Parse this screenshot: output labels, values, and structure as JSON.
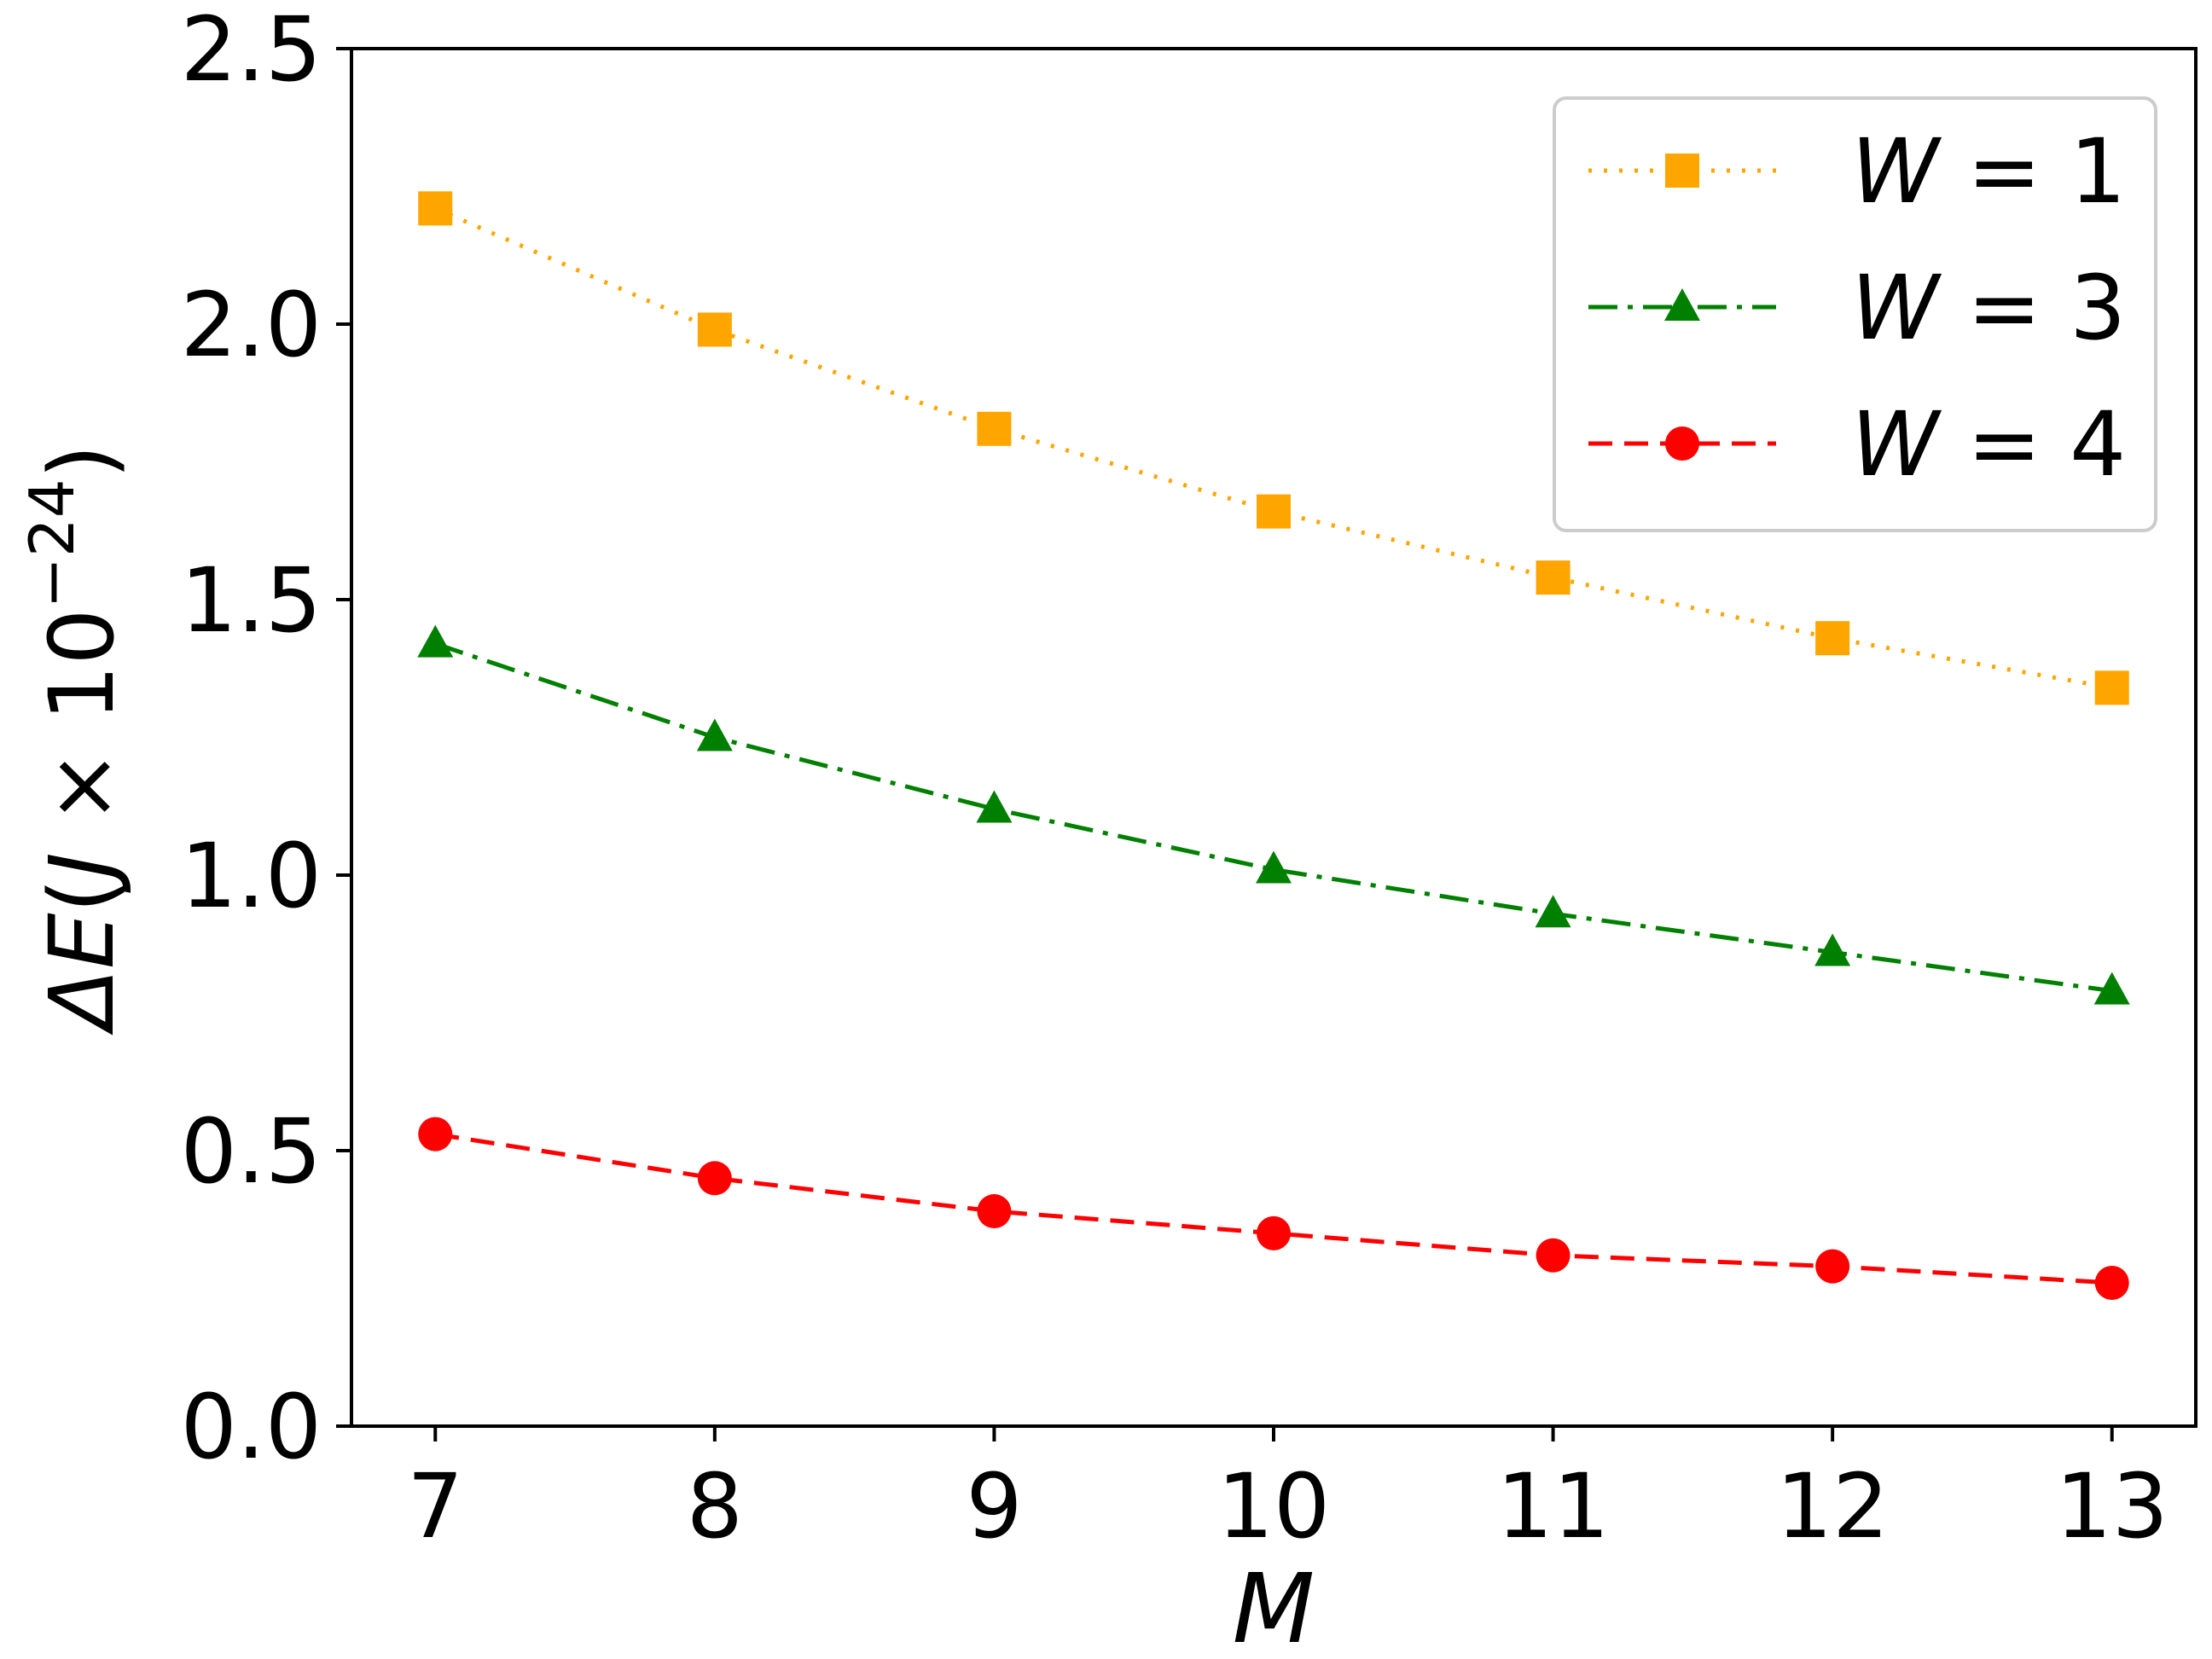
{
  "chart_data": {
    "type": "line",
    "title": "",
    "xlabel": "M",
    "ylabel_parts": {
      "delta": "ΔE",
      "open": "(",
      "unit": "J",
      "times": " × 10",
      "exponent": "−24",
      "close": ")"
    },
    "x": [
      7,
      8,
      9,
      10,
      11,
      12,
      13
    ],
    "xlim": [
      6.7,
      13.3
    ],
    "ylim": [
      0.0,
      2.5
    ],
    "xticks": [
      "7",
      "8",
      "9",
      "10",
      "11",
      "12",
      "13"
    ],
    "yticks": [
      "0.0",
      "0.5",
      "1.0",
      "1.5",
      "2.0",
      "2.5"
    ],
    "grid": false,
    "legend_position": "top-right",
    "series": [
      {
        "name": "W = 1",
        "label_var": "W",
        "label_value": "= 1",
        "color": "#ffa500",
        "marker": "square",
        "linestyle": "dotted",
        "values": [
          2.21,
          1.99,
          1.81,
          1.66,
          1.54,
          1.43,
          1.34
        ]
      },
      {
        "name": "W = 3",
        "label_var": "W",
        "label_value": "= 3",
        "color": "#008000",
        "marker": "triangle",
        "linestyle": "dashdot",
        "values": [
          1.42,
          1.25,
          1.12,
          1.01,
          0.93,
          0.86,
          0.79
        ]
      },
      {
        "name": "W = 4",
        "label_var": "W",
        "label_value": "= 4",
        "color": "#ff0000",
        "marker": "circle",
        "linestyle": "dashed",
        "values": [
          0.53,
          0.45,
          0.39,
          0.35,
          0.31,
          0.29,
          0.26
        ]
      }
    ]
  }
}
